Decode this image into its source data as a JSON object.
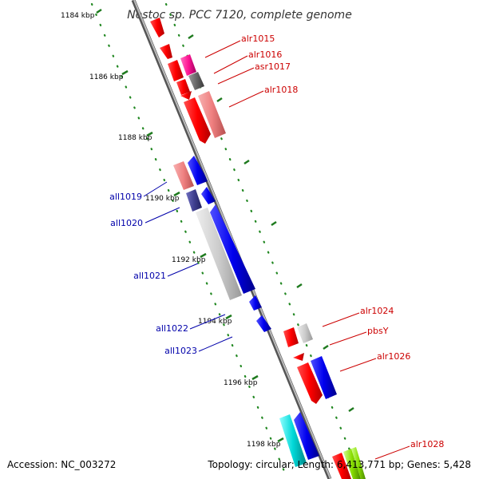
{
  "title": "Nostoc sp. PCC 7120, complete genome",
  "footer": {
    "accession": "Accession: NC_003272",
    "topology": "Topology: circular; Length: 6,413,771 bp; Genes: 5,428"
  },
  "scale_labels": [
    "1184 kbp",
    "1186 kbp",
    "1188 kbp",
    "1190 kbp",
    "1192 kbp",
    "1194 kbp",
    "1196 kbp",
    "1198 kbp"
  ],
  "colors": {
    "forward_label": "#cc0000",
    "reverse_label": "#0000aa",
    "axis": "#888888",
    "scale_dots": "#228822"
  },
  "genes": {
    "forward": [
      "alr1015",
      "alr1016",
      "asr1017",
      "alr1018",
      "alr1024",
      "pbsY",
      "alr1026",
      "alr1028"
    ],
    "reverse": [
      "all1019",
      "all1020",
      "all1021",
      "all1022",
      "all1023"
    ]
  }
}
